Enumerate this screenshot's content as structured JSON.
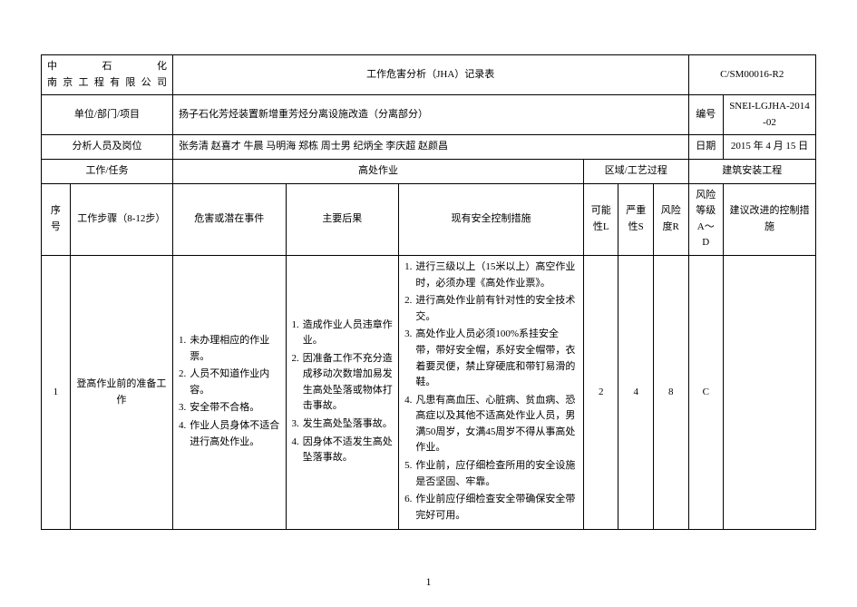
{
  "header": {
    "company_line1": "中    石    化",
    "company_line2": "南 京 工 程 有 限 公 司",
    "title": "工作危害分析（JHA）记录表",
    "doc_code": "C/SM00016-R2"
  },
  "row_unit": {
    "label": "单位/部门/项目",
    "value": "扬子石化芳烃装置新增重芳烃分离设施改造（分离部分）",
    "code_label": "编号",
    "code_value": "SNEI-LGJHA-2014-02"
  },
  "row_people": {
    "label": "分析人员及岗位",
    "value": "张务清  赵喜才  牛晨  马明海  郑栋 周士男  纪炳全  李庆超  赵颜昌",
    "date_label": "日期",
    "date_value": "2015 年 4 月 15 日"
  },
  "row_task": {
    "task_label": "工作/任务",
    "task_value": "高处作业",
    "area_label": "区域/工艺过程",
    "area_value": "建筑安装工程"
  },
  "cols": {
    "seq": "序号",
    "step": "工作步骤（8-12步）",
    "hazard": "危害或潜在事件",
    "consequence": "主要后果",
    "control": "现有安全控制措施",
    "likelihood": "可能性L",
    "severity": "严重性S",
    "risk": "风险度R",
    "level": "风险等级A～D",
    "suggestion": "建议改进的控制措施"
  },
  "data_row": {
    "seq": "1",
    "step": "登高作业前的准备工作",
    "hazards": [
      "未办理相应的作业票。",
      "人员不知道作业内容。",
      "安全带不合格。",
      "作业人员身体不适合进行高处作业。"
    ],
    "consequences": [
      "造成作业人员违章作业。",
      "因准备工作不充分造成移动次数增加易发生高处坠落或物体打击事故。",
      "发生高处坠落事故。",
      "因身体不适发生高处坠落事故。"
    ],
    "controls": [
      "进行三级以上（15米以上）高空作业时，必须办理《高处作业票》。",
      "进行高处作业前有针对性的安全技术交。",
      "高处作业人员必须100%系挂安全带，带好安全帽，系好安全帽带，衣着要灵便，禁止穿硬底和带钉易滑的鞋。",
      "凡患有高血压、心脏病、贫血病、恐高症以及其他不适高处作业人员，男满50周岁，女满45周岁不得从事高处作业。",
      "作业前，应仔细检查所用的安全设施是否坚固、牢靠。",
      "作业前应仔细检查安全带确保安全带完好可用。"
    ],
    "L": "2",
    "S": "4",
    "R": "8",
    "level": "C",
    "suggestion": ""
  },
  "page": "1"
}
